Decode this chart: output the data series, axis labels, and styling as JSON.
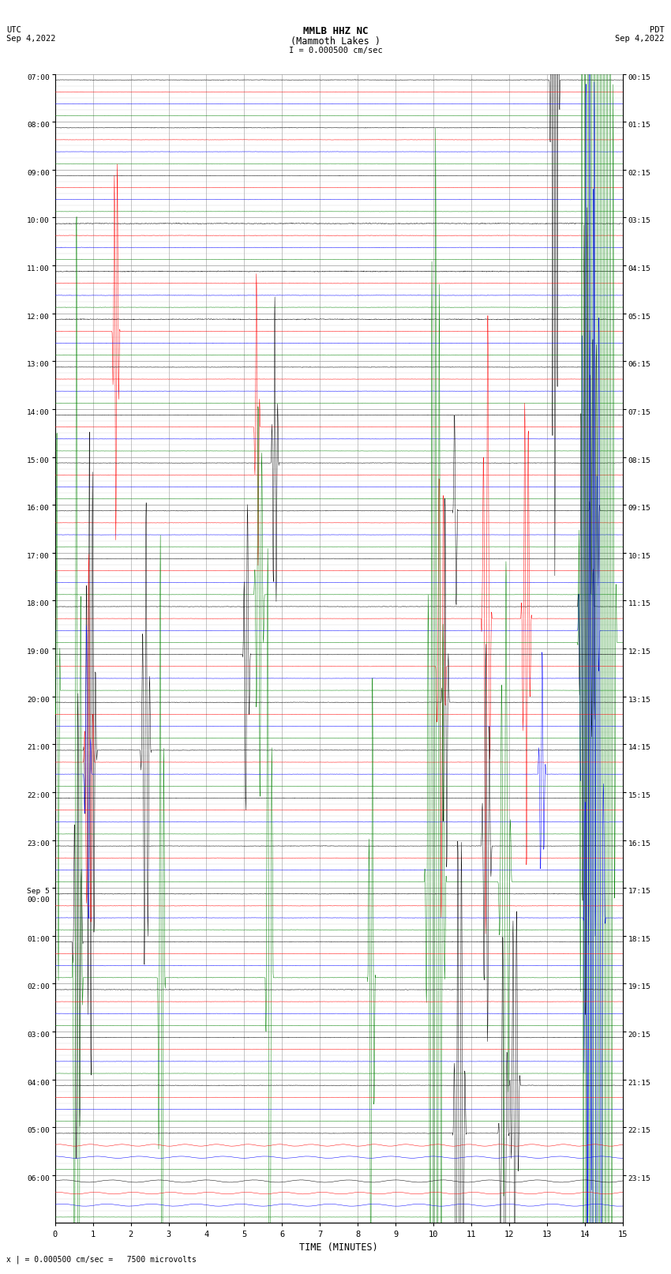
{
  "title_line1": "MMLB HHZ NC",
  "title_line2": "(Mammoth Lakes )",
  "scale_text": "I = 0.000500 cm/sec",
  "utc_label": "UTC",
  "utc_date": "Sep 4,2022",
  "pdt_label": "PDT",
  "pdt_date": "Sep 4,2022",
  "footer_text": "x | = 0.000500 cm/sec =   7500 microvolts",
  "xlabel": "TIME (MINUTES)",
  "left_times": [
    "07:00",
    "08:00",
    "09:00",
    "10:00",
    "11:00",
    "12:00",
    "13:00",
    "14:00",
    "15:00",
    "16:00",
    "17:00",
    "18:00",
    "19:00",
    "20:00",
    "21:00",
    "22:00",
    "23:00",
    "Sep 5\n00:00",
    "01:00",
    "02:00",
    "03:00",
    "04:00",
    "05:00",
    "06:00"
  ],
  "right_times": [
    "00:15",
    "01:15",
    "02:15",
    "03:15",
    "04:15",
    "05:15",
    "06:15",
    "07:15",
    "08:15",
    "09:15",
    "10:15",
    "11:15",
    "12:15",
    "13:15",
    "14:15",
    "15:15",
    "16:15",
    "17:15",
    "18:15",
    "19:15",
    "20:15",
    "21:15",
    "22:15",
    "23:15"
  ],
  "colors": [
    "black",
    "red",
    "blue",
    "green"
  ],
  "n_hour_rows": 24,
  "n_cols": 4,
  "minutes": 15,
  "bg_color": "#ffffff",
  "noise_seed": 42
}
